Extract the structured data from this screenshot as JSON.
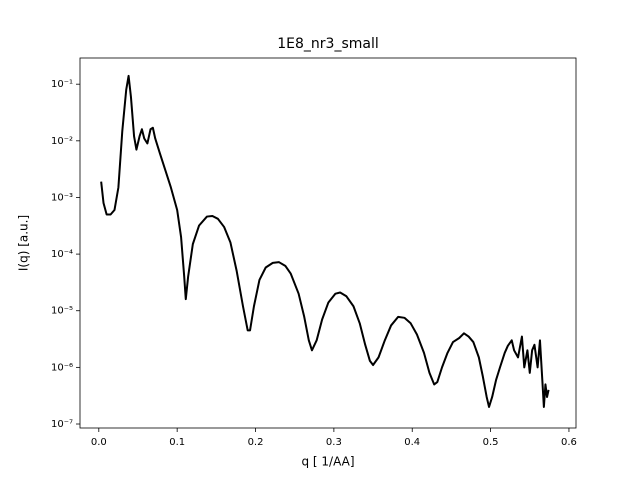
{
  "chart_data": {
    "type": "line",
    "title": "1E8_nr3_small",
    "x_label": "q [ 1/AA]",
    "y_label": "I(q) [a.u.]",
    "log_y": true,
    "xlim": [
      -0.024,
      0.609
    ],
    "ylim": [
      8.5e-08,
      0.29
    ],
    "xticks": [
      {
        "value": 0,
        "label": "0.0"
      },
      0.1,
      0.2,
      0.3,
      0.4,
      0.5,
      0.6
    ],
    "yticks": [
      {
        "value": 1e-07,
        "label": "10⁻⁷"
      },
      {
        "value": 1e-06,
        "label": "10⁻⁶"
      },
      {
        "value": 1e-05,
        "label": "10⁻⁵"
      },
      {
        "value": 0.0001,
        "label": "10⁻⁴"
      },
      {
        "value": 0.001,
        "label": "10⁻³"
      },
      {
        "value": 0.01,
        "label": "10⁻²"
      },
      {
        "value": 0.1,
        "label": "10⁻¹"
      }
    ],
    "color": "#000000",
    "x": [
      0.003,
      0.006,
      0.01,
      0.015,
      0.02,
      0.025,
      0.03,
      0.035,
      0.038,
      0.041,
      0.045,
      0.048,
      0.052,
      0.055,
      0.058,
      0.062,
      0.066,
      0.069,
      0.072,
      0.078,
      0.085,
      0.092,
      0.1,
      0.105,
      0.109,
      0.111,
      0.114,
      0.12,
      0.128,
      0.138,
      0.145,
      0.152,
      0.16,
      0.168,
      0.176,
      0.184,
      0.19,
      0.193,
      0.198,
      0.205,
      0.213,
      0.222,
      0.23,
      0.238,
      0.245,
      0.255,
      0.262,
      0.268,
      0.272,
      0.278,
      0.285,
      0.293,
      0.302,
      0.308,
      0.316,
      0.325,
      0.333,
      0.34,
      0.346,
      0.35,
      0.357,
      0.365,
      0.373,
      0.382,
      0.39,
      0.398,
      0.406,
      0.415,
      0.422,
      0.428,
      0.432,
      0.438,
      0.445,
      0.452,
      0.46,
      0.466,
      0.472,
      0.478,
      0.485,
      0.49,
      0.495,
      0.498,
      0.502,
      0.507,
      0.512,
      0.518,
      0.522,
      0.527,
      0.53,
      0.535,
      0.54,
      0.543,
      0.547,
      0.55,
      0.553,
      0.556,
      0.56,
      0.563,
      0.566,
      0.568,
      0.57,
      0.572,
      0.574
    ],
    "values": [
      0.0019,
      0.0008,
      0.0005,
      0.0005,
      0.0006,
      0.0015,
      0.015,
      0.08,
      0.14,
      0.06,
      0.012,
      0.007,
      0.012,
      0.016,
      0.011,
      0.009,
      0.016,
      0.017,
      0.011,
      0.006,
      0.003,
      0.0015,
      0.0006,
      0.0002,
      4e-05,
      1.6e-05,
      4e-05,
      0.00015,
      0.00032,
      0.00046,
      0.00047,
      0.00042,
      0.0003,
      0.00016,
      5e-05,
      1.2e-05,
      4.5e-06,
      4.5e-06,
      1.2e-05,
      3.5e-05,
      5.8e-05,
      7e-05,
      7.2e-05,
      6.2e-05,
      4.5e-05,
      2e-05,
      8e-06,
      3e-06,
      2e-06,
      3e-06,
      7e-06,
      1.4e-05,
      2e-05,
      2.1e-05,
      1.8e-05,
      1.2e-05,
      6e-06,
      2.5e-06,
      1.3e-06,
      1.1e-06,
      1.5e-06,
      3e-06,
      5.5e-06,
      7.8e-06,
      7.5e-06,
      6e-06,
      3.8e-06,
      1.8e-06,
      8e-07,
      5e-07,
      5.5e-07,
      1e-06,
      1.8e-06,
      2.8e-06,
      3.3e-06,
      4e-06,
      3.5e-06,
      2.8e-06,
      1.5e-06,
      7e-07,
      3e-07,
      2e-07,
      3e-07,
      6e-07,
      1e-06,
      1.8e-06,
      2.4e-06,
      3e-06,
      2e-06,
      1.5e-06,
      3.5e-06,
      1e-06,
      2e-06,
      8e-07,
      2e-06,
      2.5e-06,
      1e-06,
      3e-06,
      6e-07,
      2e-07,
      5e-07,
      3e-07,
      4e-07
    ]
  }
}
